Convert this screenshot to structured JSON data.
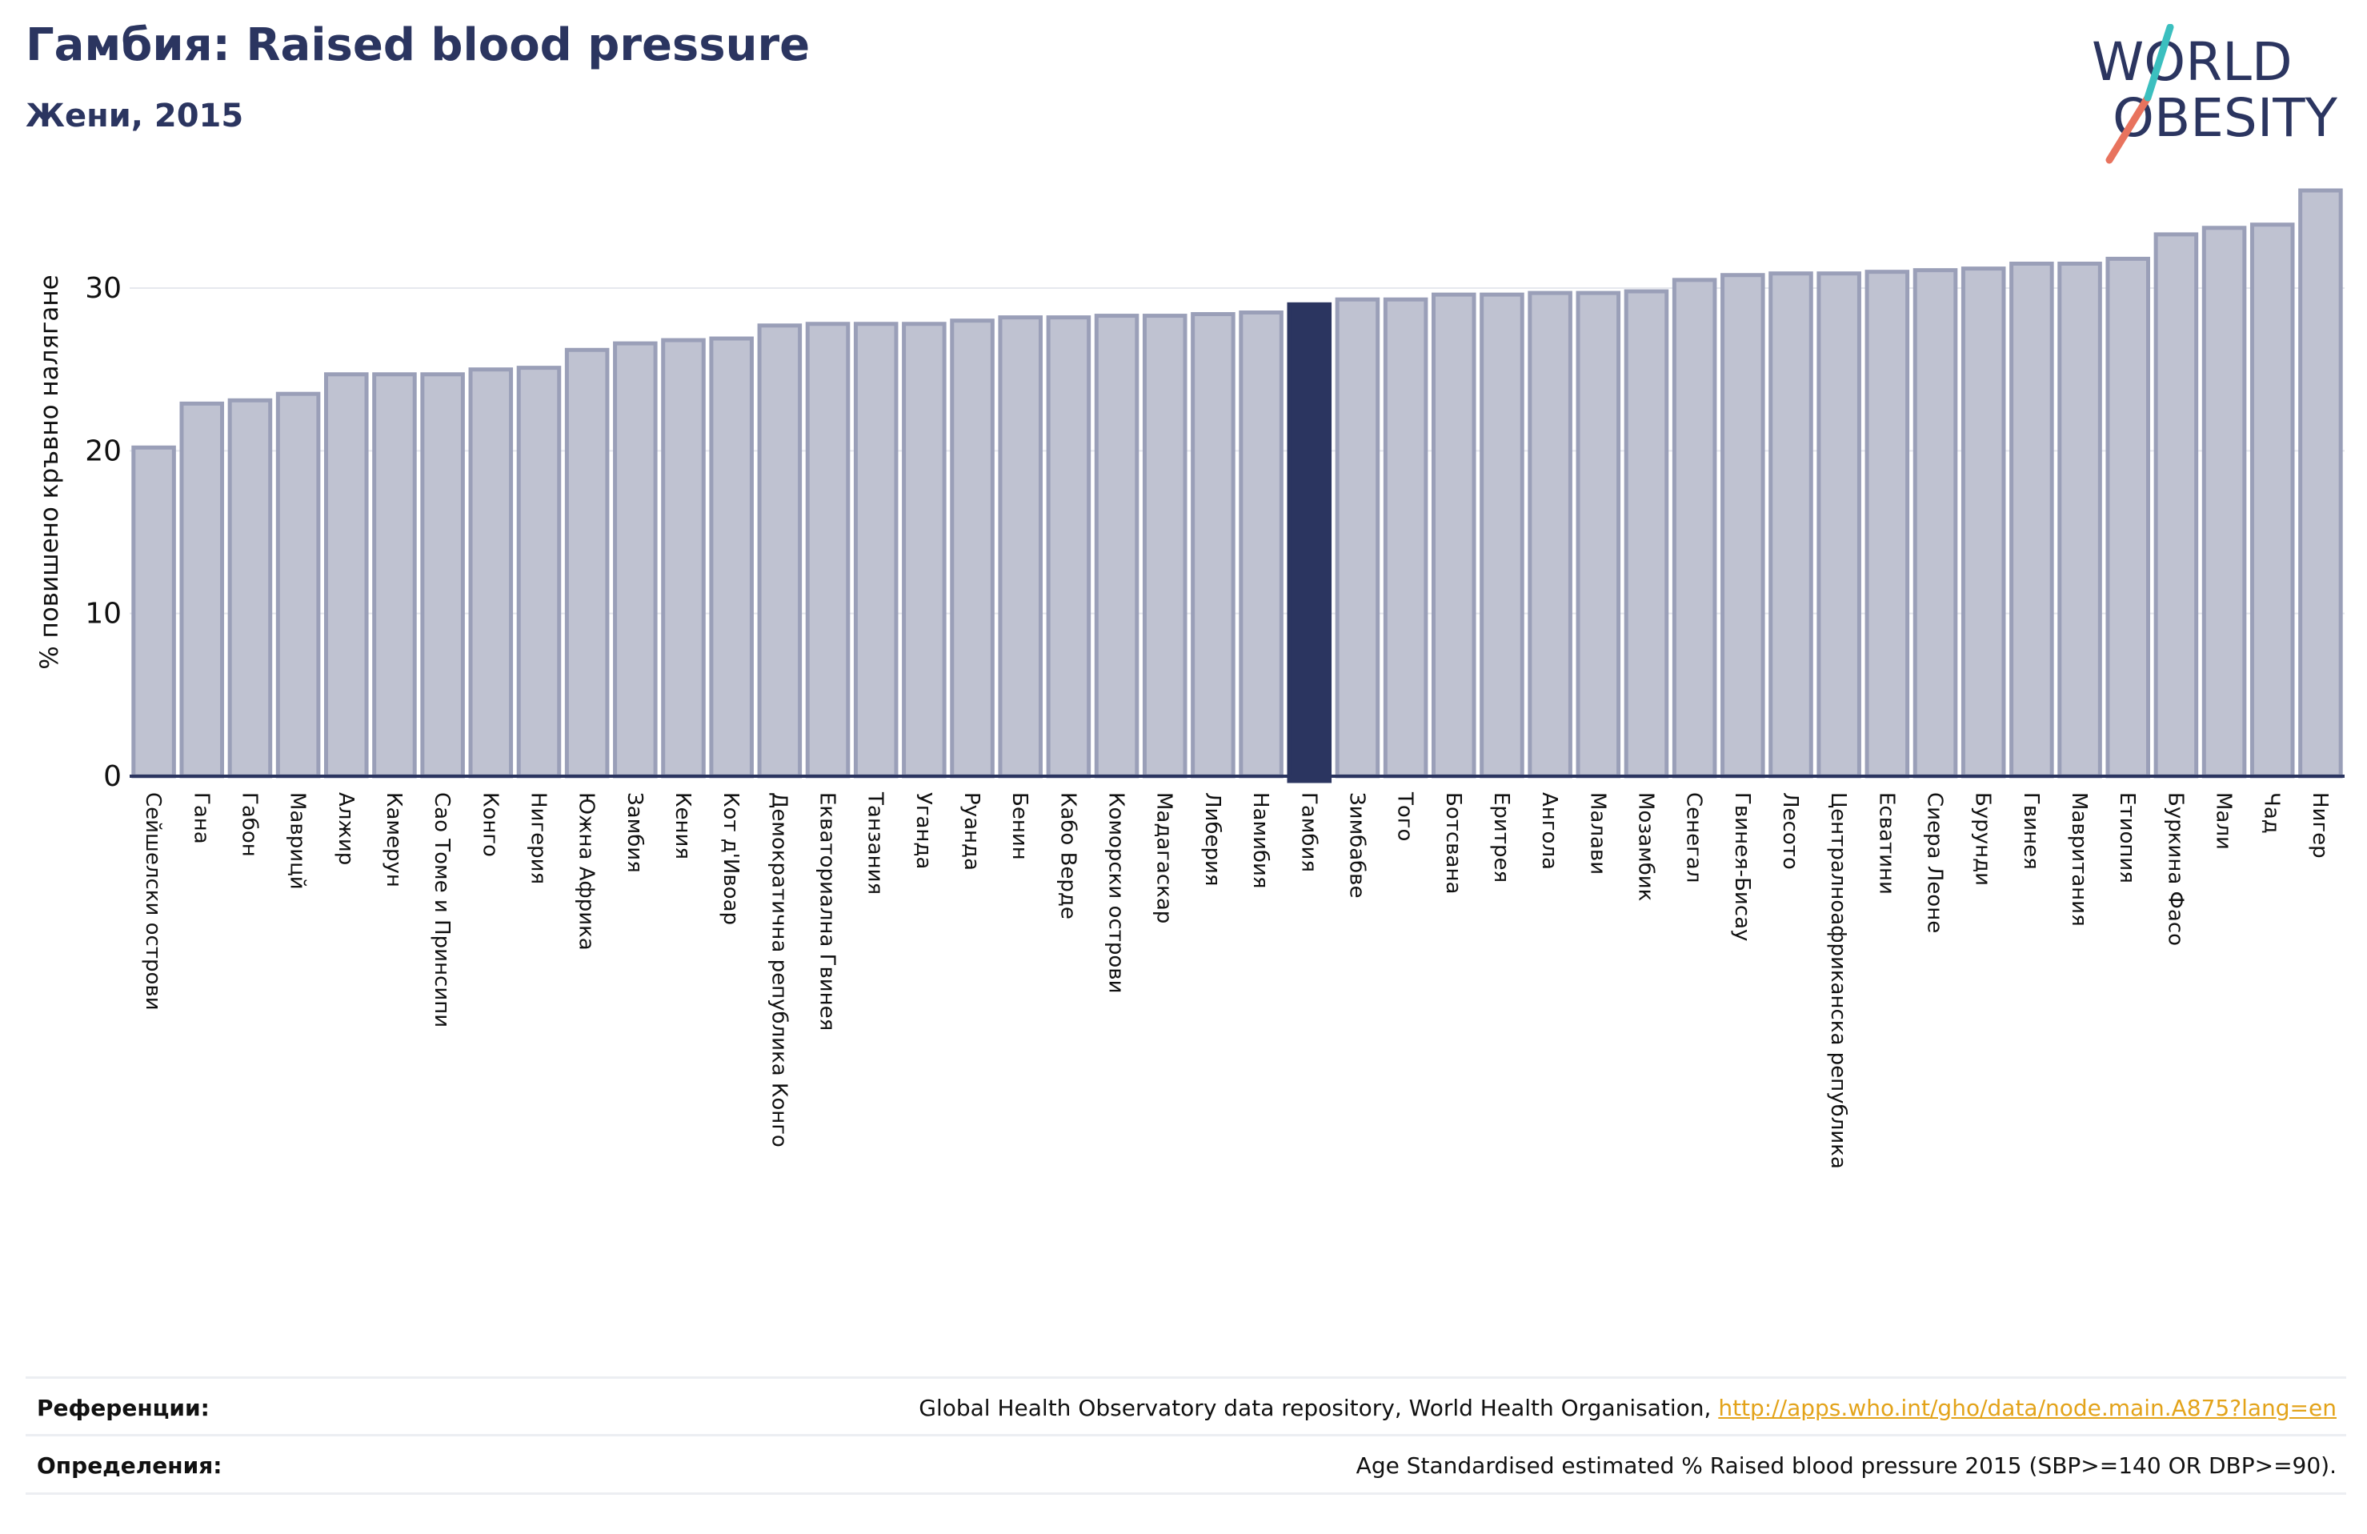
{
  "header": {
    "title": "Гамбия: Raised blood pressure",
    "subtitle": "Жени, 2015"
  },
  "logo": {
    "line1": "WORLD",
    "line2": "OBESITY"
  },
  "colors": {
    "bar": "#bfc2d1",
    "bar_edge": "#9a9fb8",
    "highlight": "#2b3560",
    "title": "#2b3560",
    "link": "#e3a31a"
  },
  "chart_data": {
    "type": "bar",
    "ylabel": "% повишено кръвно налягане",
    "ylim": [
      0,
      36
    ],
    "yticks": [
      0,
      10,
      20,
      30
    ],
    "grid": true,
    "highlight": "Гамбия",
    "categories": [
      "Сейшелски острови",
      "Гана",
      "Габон",
      "Маврицй",
      "Алжир",
      "Камерун",
      "Сао Томе и Принсипи",
      "Конго",
      "Нигерия",
      "Южна Африка",
      "Замбия",
      "Кения",
      "Кот д'Ивоар",
      "Демократична република Конго",
      "Екваториална Гвинея",
      "Танзания",
      "Уганда",
      "Руанда",
      "Бенин",
      "Кабо Верде",
      "Коморски острови",
      "Мадагаскар",
      "Либерия",
      "Намибия",
      "Гамбия",
      "Зимбабве",
      "Того",
      "Ботсвана",
      "Еритрея",
      "Ангола",
      "Малави",
      "Мозамбик",
      "Сенегал",
      "Гвинея-Бисау",
      "Лесото",
      "Централноафриканска република",
      "Есватини",
      "Сиера Леоне",
      "Бурунди",
      "Гвинея",
      "Мавритания",
      "Етиопия",
      "Буркина Фасо",
      "Мали",
      "Чад",
      "Нигер"
    ],
    "values": [
      20.2,
      22.9,
      23.1,
      23.5,
      24.7,
      24.7,
      24.7,
      25.0,
      25.1,
      26.2,
      26.6,
      26.8,
      26.9,
      27.7,
      27.8,
      27.8,
      27.8,
      28.0,
      28.2,
      28.2,
      28.3,
      28.3,
      28.4,
      28.5,
      29.0,
      29.3,
      29.3,
      29.6,
      29.6,
      29.7,
      29.7,
      29.8,
      30.5,
      30.8,
      30.9,
      30.9,
      31.0,
      31.1,
      31.2,
      31.5,
      31.5,
      31.8,
      33.3,
      33.7,
      33.9,
      36.0
    ]
  },
  "footer": {
    "references_label": "Референции:",
    "references_text": "Global Health Observatory data repository, World Health Organisation, ",
    "references_link": "http://apps.who.int/gho/data/node.main.A875?lang=en",
    "definitions_label": "Определения:",
    "definitions_text": "Age Standardised estimated % Raised blood pressure 2015 (SBP>=140 OR DBP>=90)."
  }
}
